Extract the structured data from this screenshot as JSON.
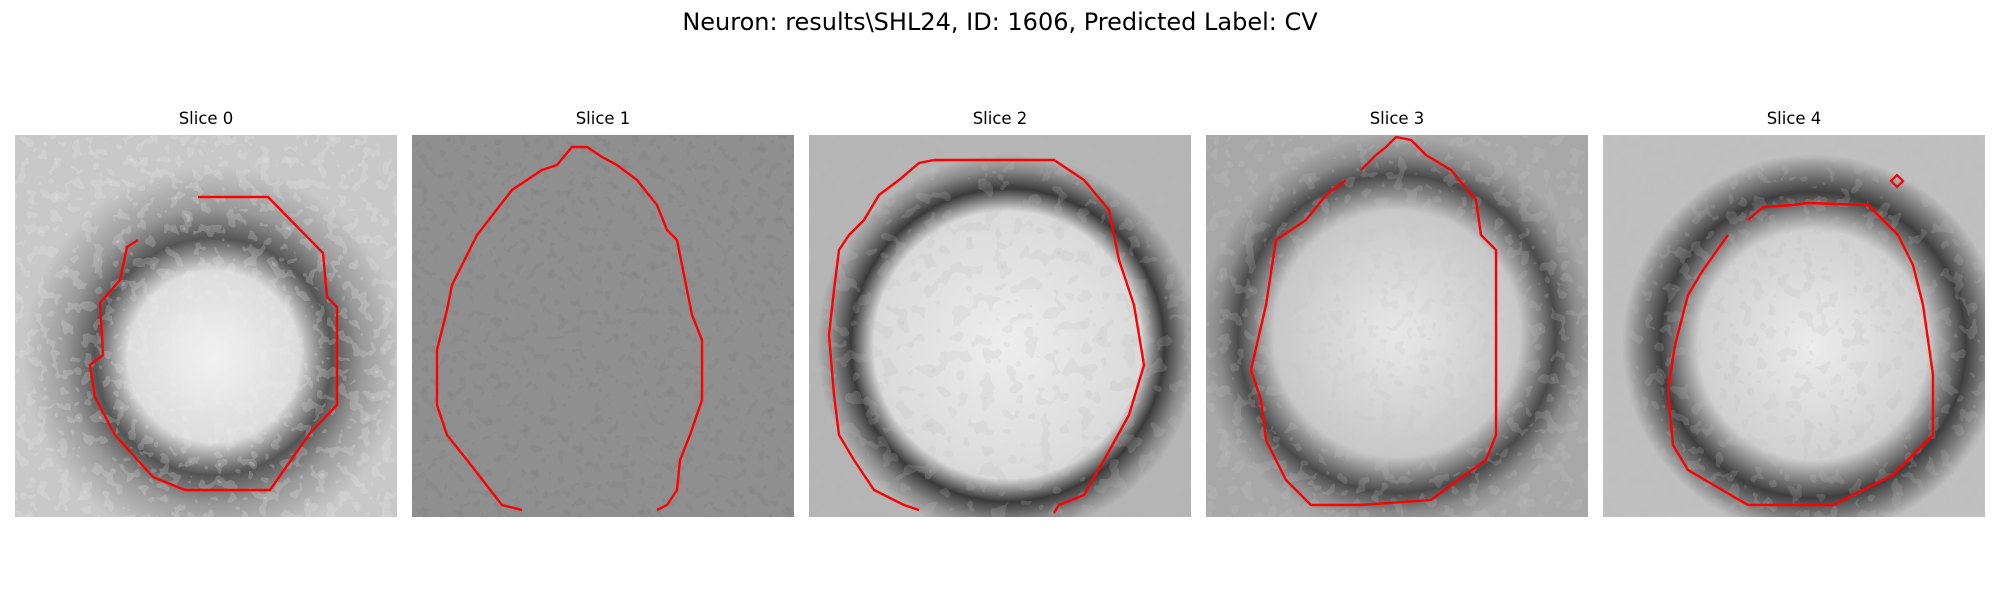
{
  "figure": {
    "title": "Neuron: results\\SHL24, ID: 1606, Predicted Label: CV"
  },
  "panels": [
    {
      "title": "Slice 0"
    },
    {
      "title": "Slice 1"
    },
    {
      "title": "Slice 2"
    },
    {
      "title": "Slice 3"
    },
    {
      "title": "Slice 4"
    }
  ],
  "colors": {
    "contour": "#ff0000",
    "background": "#ffffff"
  }
}
